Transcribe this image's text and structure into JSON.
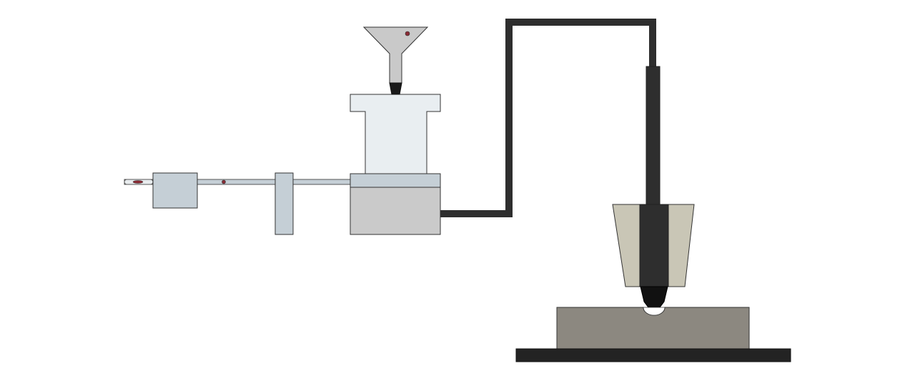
{
  "diagram": {
    "kind": "apparatus-schematic",
    "components": [
      "wire-probe",
      "rod-connector-block",
      "rod",
      "rod-support-post",
      "funnel-hopper",
      "chamber-body",
      "chamber-base",
      "hose",
      "nozzle-shroud",
      "nozzle-tip",
      "workpiece-block",
      "base-plate"
    ],
    "colors": {
      "background": "#ffffff",
      "outline": "#333333",
      "light-gray-blue": "#c5cfd6",
      "chamber-body": "#e9eef1",
      "chamber-base": "#cacaca",
      "funnel": "#c9c9c9",
      "hose": "#2e2e2e",
      "shroud": "#c9c6b6",
      "tip": "#111111",
      "workpiece": "#8c8880",
      "base-plate": "#232323",
      "particle": "#8a2a34"
    }
  }
}
